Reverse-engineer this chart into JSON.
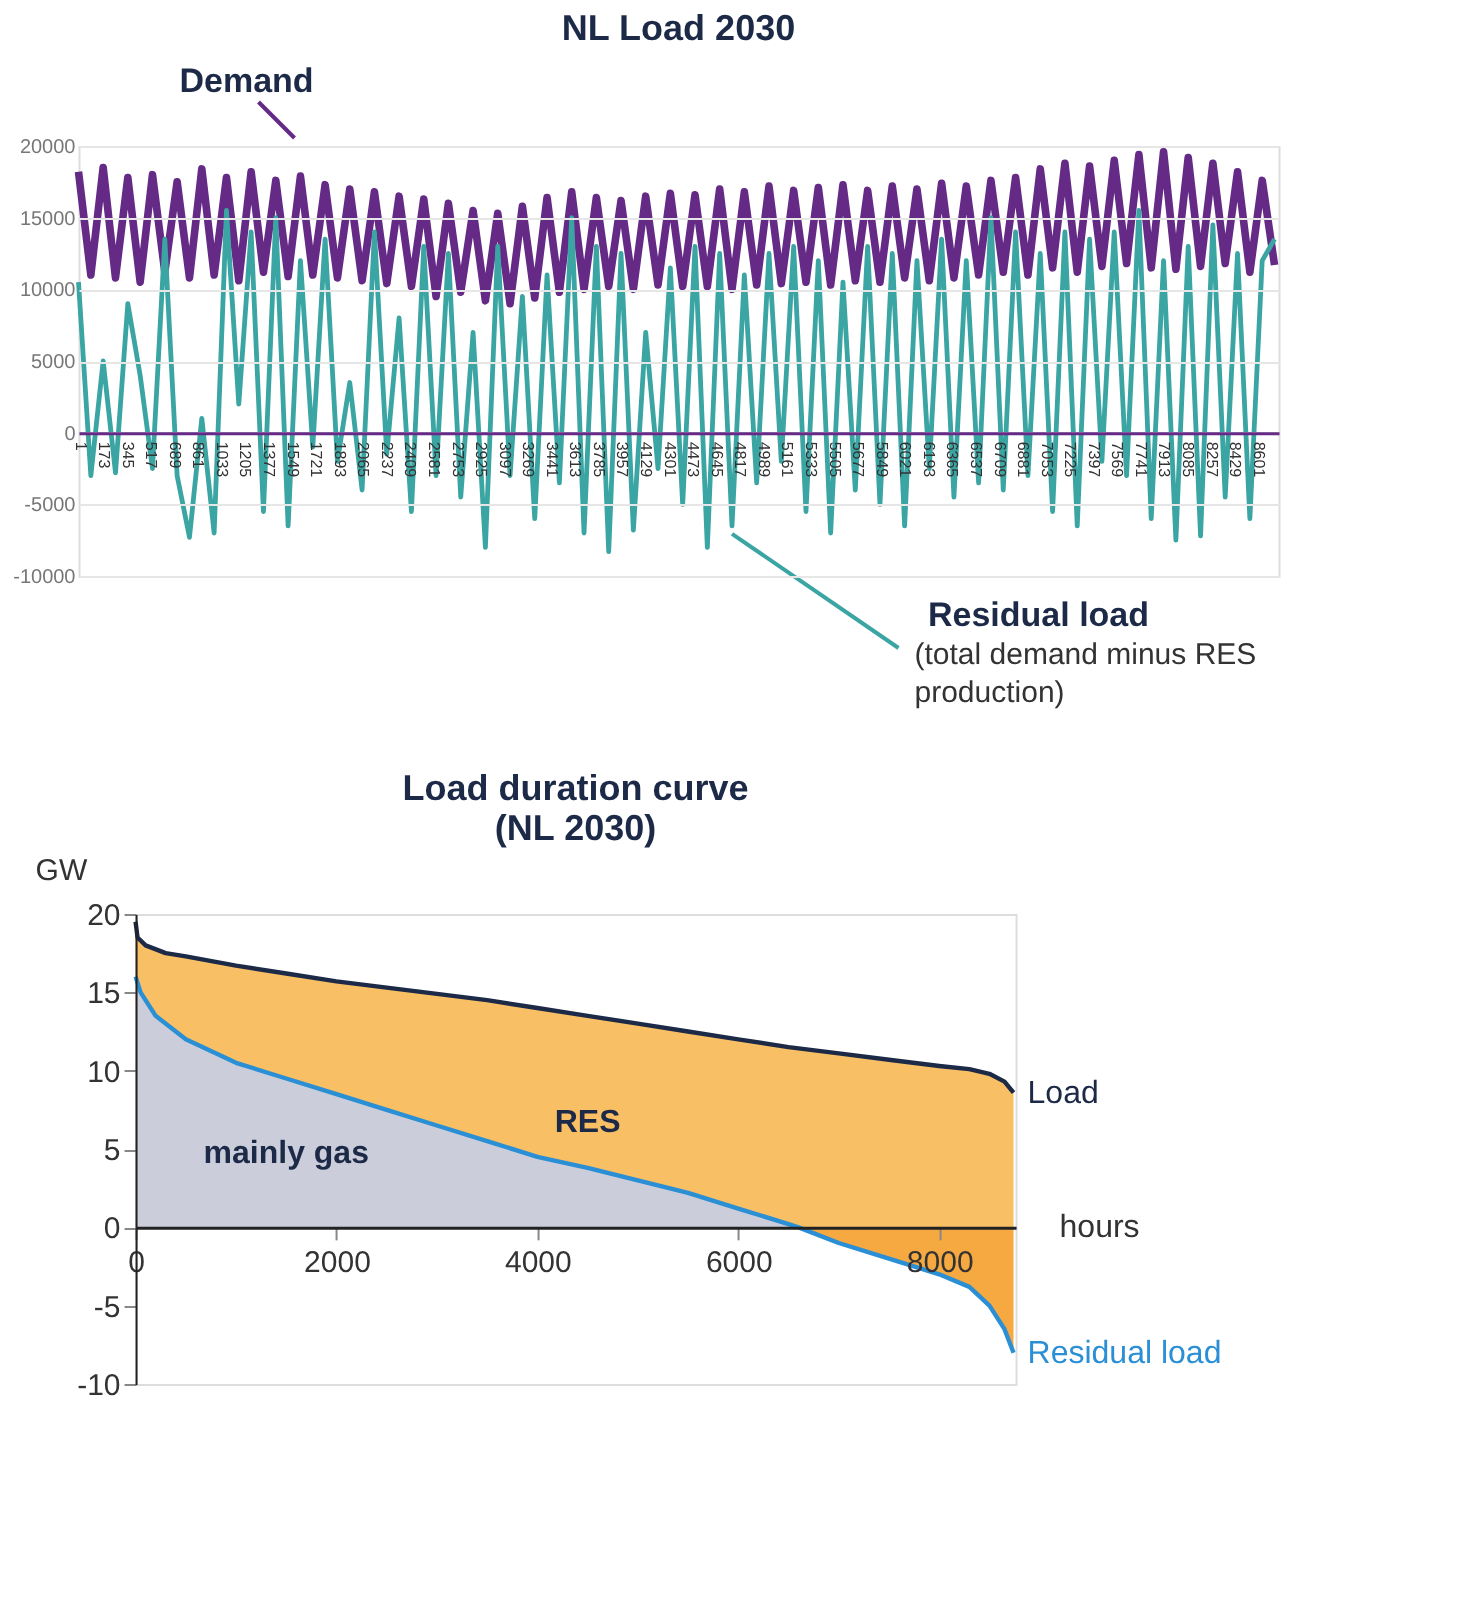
{
  "chart_data": [
    {
      "type": "line",
      "title": "NL Load 2030",
      "xlim": [
        1,
        8760
      ],
      "xticks": [
        1,
        173,
        345,
        517,
        689,
        861,
        1033,
        1205,
        1377,
        1549,
        1721,
        1893,
        2065,
        2237,
        2409,
        2581,
        2753,
        2925,
        3097,
        3269,
        3441,
        3613,
        3785,
        3957,
        4129,
        4301,
        4473,
        4645,
        4817,
        4989,
        5161,
        5333,
        5505,
        5677,
        5849,
        6021,
        6193,
        6365,
        6537,
        6709,
        6881,
        7053,
        7225,
        7397,
        7569,
        7741,
        7913,
        8085,
        8257,
        8429,
        8601
      ],
      "ylim": [
        -10000,
        20000
      ],
      "yticks": [
        -10000,
        -5000,
        0,
        5000,
        10000,
        15000,
        20000
      ],
      "grid": "y",
      "annotations": [
        {
          "text": "(total demand minus RES production)",
          "x": 4771,
          "y": -6500
        }
      ],
      "x": [
        1,
        91,
        181,
        271,
        361,
        451,
        541,
        631,
        721,
        811,
        901,
        991,
        1081,
        1171,
        1261,
        1351,
        1441,
        1531,
        1621,
        1711,
        1801,
        1891,
        1981,
        2071,
        2161,
        2251,
        2341,
        2431,
        2521,
        2611,
        2701,
        2791,
        2881,
        2971,
        3061,
        3151,
        3241,
        3331,
        3421,
        3511,
        3601,
        3691,
        3781,
        3871,
        3961,
        4051,
        4141,
        4231,
        4321,
        4411,
        4501,
        4591,
        4681,
        4771,
        4861,
        4951,
        5041,
        5131,
        5221,
        5311,
        5401,
        5491,
        5581,
        5671,
        5761,
        5851,
        5941,
        6031,
        6121,
        6211,
        6301,
        6391,
        6481,
        6571,
        6661,
        6751,
        6841,
        6931,
        7021,
        7111,
        7201,
        7291,
        7381,
        7471,
        7561,
        7651,
        7741,
        7831,
        7921,
        8011,
        8101,
        8191,
        8281,
        8371,
        8461,
        8551,
        8641,
        8731
      ],
      "series": [
        {
          "name": "Demand",
          "color": "#642a86",
          "values": [
            18200,
            11000,
            18500,
            10800,
            17800,
            10500,
            18000,
            11200,
            17500,
            10800,
            18400,
            11000,
            17800,
            10600,
            18200,
            11200,
            17600,
            10900,
            17900,
            11000,
            17300,
            10800,
            17000,
            10600,
            16800,
            10400,
            16500,
            10200,
            16300,
            9500,
            16000,
            9800,
            15500,
            9200,
            15300,
            9000,
            15800,
            9400,
            16400,
            9800,
            16800,
            10000,
            16400,
            10200,
            16200,
            10000,
            16500,
            10300,
            16700,
            10200,
            16600,
            10200,
            17000,
            10000,
            16800,
            10300,
            17200,
            10400,
            16900,
            10500,
            17100,
            10300,
            17300,
            10600,
            16900,
            10500,
            17200,
            10800,
            17000,
            10600,
            17400,
            10800,
            17200,
            11000,
            17600,
            11200,
            17800,
            11000,
            18400,
            11500,
            18800,
            11200,
            18600,
            11600,
            19000,
            11800,
            19400,
            11500,
            19600,
            11400,
            19200,
            11600,
            18800,
            11800,
            18200,
            11200,
            17600,
            11700
          ]
        },
        {
          "name": "Residual load",
          "color": "#3aa5a2",
          "values": [
            10500,
            -3000,
            5000,
            -2800,
            9000,
            4000,
            -2500,
            13500,
            -3000,
            -7300,
            1000,
            -7000,
            15500,
            2000,
            14000,
            -5500,
            15000,
            -6500,
            12000,
            -1000,
            13500,
            -2000,
            3500,
            -4000,
            14000,
            -1500,
            8000,
            -5500,
            13000,
            -3000,
            12500,
            -4500,
            7000,
            -8000,
            13000,
            -3000,
            9500,
            -6000,
            11000,
            -3500,
            15000,
            -7000,
            13000,
            -8300,
            12500,
            -6800,
            7000,
            -2500,
            11500,
            -5000,
            13000,
            -8000,
            12500,
            -6500,
            11000,
            -3500,
            12500,
            -2000,
            13000,
            -5500,
            12000,
            -7000,
            10500,
            -4000,
            13000,
            -5000,
            12500,
            -6500,
            12000,
            -2500,
            13500,
            -4500,
            12000,
            -3500,
            15000,
            -4000,
            14000,
            -3000,
            12500,
            -5500,
            14000,
            -6500,
            13500,
            -2000,
            14000,
            -3000,
            15500,
            -6000,
            12000,
            -7500,
            13000,
            -7200,
            14500,
            -4500,
            12500,
            -6000,
            12000,
            13500
          ]
        }
      ]
    },
    {
      "type": "line",
      "title": "Load duration curve\n(NL 2030)",
      "xlabel": "hours",
      "ylabel": "GW",
      "xlim": [
        0,
        8760
      ],
      "xticks": [
        0,
        2000,
        4000,
        6000,
        8000
      ],
      "ylim": [
        -10,
        20
      ],
      "yticks": [
        -10,
        -5,
        0,
        5,
        10,
        15,
        20
      ],
      "series": [
        {
          "name": "RES",
          "type": "area",
          "color": "#f7b44a",
          "x": [
            0,
            20,
            100,
            300,
            500,
            1000,
            1500,
            2000,
            2500,
            3000,
            3500,
            4000,
            4500,
            5000,
            5500,
            6000,
            6500,
            7000,
            7500,
            8000,
            8300,
            8500,
            8650,
            8740
          ],
          "values": [
            19.5,
            18.5,
            18,
            17.5,
            17.3,
            16.7,
            16.2,
            15.7,
            15.3,
            14.9,
            14.5,
            14,
            13.5,
            13,
            12.5,
            12,
            11.5,
            11.1,
            10.7,
            10.3,
            10.1,
            9.8,
            9.3,
            8.6
          ]
        },
        {
          "name": "mainly gas",
          "type": "area",
          "color": "#c3d0ee",
          "x": [
            0,
            50,
            200,
            500,
            1000,
            1500,
            2000,
            2500,
            3000,
            3500,
            4000,
            4500,
            5000,
            5500,
            6000,
            6500,
            6600
          ],
          "values": [
            16,
            15,
            13.5,
            12,
            10.5,
            9.5,
            8.5,
            7.5,
            6.5,
            5.5,
            4.5,
            3.8,
            3,
            2.2,
            1.2,
            0.2,
            0
          ]
        },
        {
          "type": "area",
          "color": "#f39a1e",
          "x": [
            6600,
            7000,
            7500,
            8000,
            8300,
            8500,
            8650,
            8740
          ],
          "values": [
            0,
            -1,
            -2,
            -3,
            -3.8,
            -5,
            -6.5,
            -8
          ]
        },
        {
          "name": "Load",
          "type": "line",
          "color": "#1c2a48",
          "x": [
            0,
            20,
            100,
            300,
            500,
            1000,
            1500,
            2000,
            2500,
            3000,
            3500,
            4000,
            4500,
            5000,
            5500,
            6000,
            6500,
            7000,
            7500,
            8000,
            8300,
            8500,
            8650,
            8740
          ],
          "values": [
            19.5,
            18.5,
            18,
            17.5,
            17.3,
            16.7,
            16.2,
            15.7,
            15.3,
            14.9,
            14.5,
            14,
            13.5,
            13,
            12.5,
            12,
            11.5,
            11.1,
            10.7,
            10.3,
            10.1,
            9.8,
            9.3,
            8.6
          ]
        },
        {
          "name": "Residual load",
          "type": "line",
          "color": "#2a8fd4",
          "x": [
            0,
            50,
            200,
            500,
            1000,
            1500,
            2000,
            2500,
            3000,
            3500,
            4000,
            4500,
            5000,
            5500,
            6000,
            6500,
            6600,
            7000,
            7500,
            8000,
            8300,
            8500,
            8650,
            8740
          ],
          "values": [
            16,
            15,
            13.5,
            12,
            10.5,
            9.5,
            8.5,
            7.5,
            6.5,
            5.5,
            4.5,
            3.8,
            3,
            2.2,
            1.2,
            0.2,
            0,
            -1,
            -2,
            -3,
            -3.8,
            -5,
            -6.5,
            -8
          ]
        }
      ]
    }
  ]
}
